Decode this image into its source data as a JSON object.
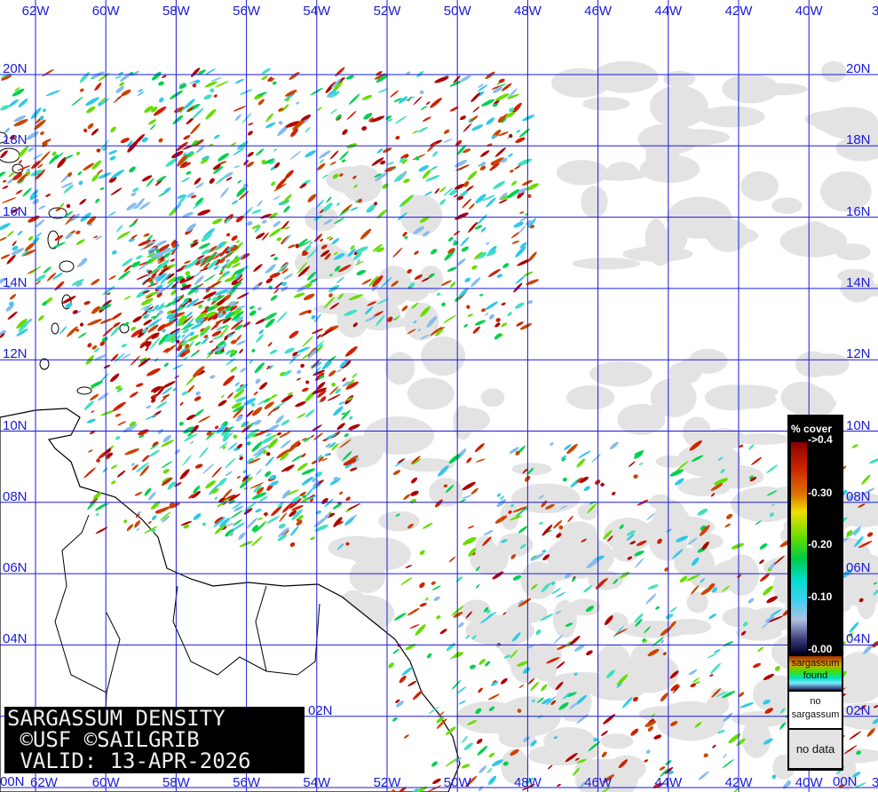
{
  "map": {
    "title_lines": [
      "SARGASSUM DENSITY",
      " ©USF ©SAILGRIB",
      " VALID: 13-APR-2026"
    ],
    "longitude_labels": [
      "62W",
      "60W",
      "58W",
      "56W",
      "54W",
      "52W",
      "50W",
      "48W",
      "46W",
      "44W",
      "42W",
      "40W",
      "38"
    ],
    "latitude_labels": [
      "20N",
      "18N",
      "16N",
      "14N",
      "12N",
      "10N",
      "08N",
      "06N",
      "04N",
      "02N",
      "00N"
    ],
    "grid_color": "#1a1adb",
    "land_outline_color": "#000000",
    "no_data_color": "#e3e3e3"
  },
  "legend": {
    "title": "% cover",
    "ticks": [
      "->0.4",
      "-0.30",
      "-0.20",
      "-0.10",
      "-0.00"
    ],
    "found_label": [
      "sargassum",
      "found"
    ],
    "no_sargassum_label": [
      "no",
      "sargassum"
    ],
    "no_data_label": "no data"
  }
}
